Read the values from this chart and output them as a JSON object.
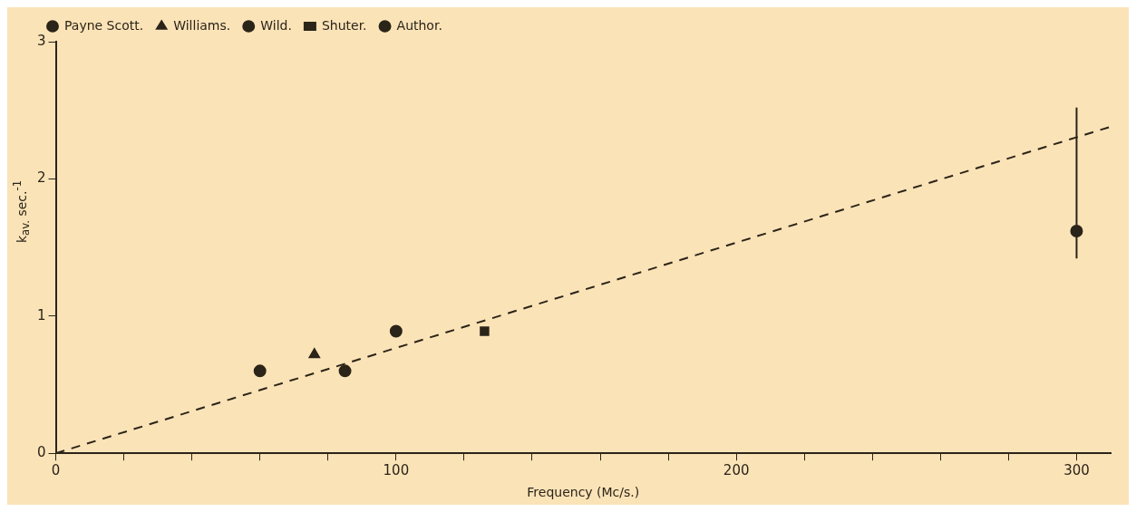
{
  "chart_data": {
    "type": "scatter",
    "xlabel": "Frequency (Mc/s.)",
    "ylabel": "k$_{av.}$ sec.$^{-1}$",
    "xlim": [
      0,
      310
    ],
    "ylim": [
      0,
      3
    ],
    "xticks": [
      0,
      {
        "value": 20,
        "label": null
      },
      {
        "value": 40,
        "label": null
      },
      {
        "value": 60,
        "label": null
      },
      {
        "value": 80,
        "label": null
      },
      100,
      {
        "value": 120,
        "label": null
      },
      {
        "value": 140,
        "label": null
      },
      {
        "value": 160,
        "label": null
      },
      {
        "value": 180,
        "label": null
      },
      200,
      {
        "value": 220,
        "label": null
      },
      {
        "value": 240,
        "label": null
      },
      {
        "value": 260,
        "label": null
      },
      {
        "value": 280,
        "label": null
      },
      300
    ],
    "yticks": [
      0,
      1,
      2,
      3
    ],
    "grid": false,
    "legend": "top left",
    "series": [
      {
        "name": "Payne Scott.",
        "color": "#2b2418",
        "marker": "circle",
        "x": [
          60,
          85
        ],
        "values": [
          0.6,
          0.6
        ]
      },
      {
        "name": "Williams.",
        "color": "#2b2418",
        "marker": "triangle",
        "x": [
          76
        ],
        "values": [
          0.72
        ]
      },
      {
        "name": "Wild.",
        "color": "#2b2418",
        "marker": "circle",
        "x": [
          100
        ],
        "values": [
          0.89
        ]
      },
      {
        "name": "Shuter.",
        "color": "#2b2418",
        "marker": "square",
        "x": [
          126
        ],
        "values": [
          0.89
        ]
      },
      {
        "name": "Author.",
        "color": "#2b2418",
        "marker": "circle",
        "x": [
          300
        ],
        "values": [
          1.62
        ],
        "errors": [
          [
            1.42,
            2.52
          ]
        ]
      },
      {
        "type": "line",
        "color": "#2b2418",
        "line_style": "dashed",
        "marker": "none",
        "x": [
          0,
          310
        ],
        "values": [
          0,
          2.38
        ]
      }
    ]
  }
}
